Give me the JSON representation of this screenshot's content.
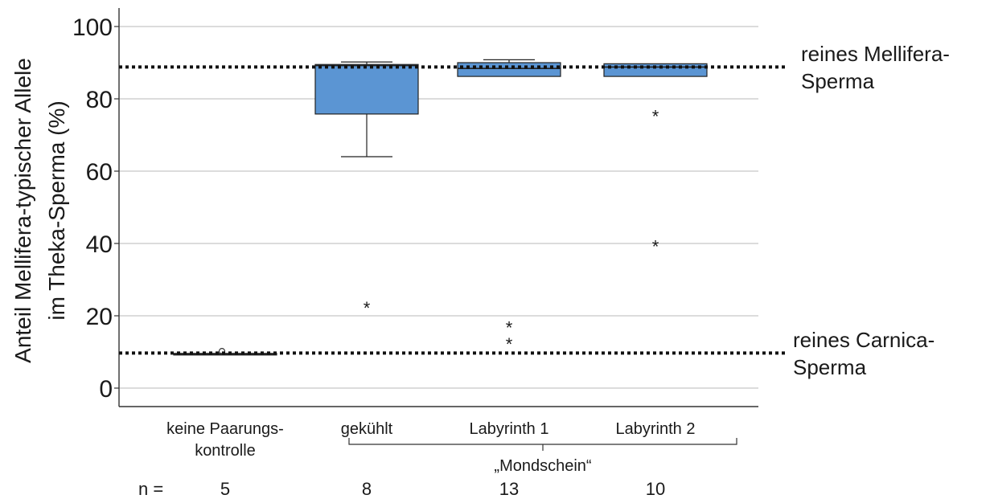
{
  "chart_data": {
    "type": "boxplot",
    "ylabel_line1": "Anteil Mellifera-typischer Allele",
    "ylabel_line2": "im Theka-Sperma (%)",
    "ylim": [
      -5,
      106
    ],
    "yticks": [
      0,
      20,
      40,
      60,
      80,
      100
    ],
    "grid": true,
    "categories": [
      {
        "line1": "keine Paarungs-",
        "line2": "kontrolle"
      },
      {
        "line1": "gekühlt",
        "line2": ""
      },
      {
        "line1": "Labyrinth 1",
        "line2": ""
      },
      {
        "line1": "Labyrinth 2",
        "line2": ""
      }
    ],
    "n_label": "n =",
    "n_values": [
      "5",
      "8",
      "13",
      "10"
    ],
    "group_label": "„Mondschein“",
    "boxes": [
      {
        "whisker_low": 9.2,
        "q1": 9.2,
        "median": 9.4,
        "q3": 9.6,
        "whisker_high": 9.6,
        "outliers_circle": [
          10.2
        ],
        "outliers_star": []
      },
      {
        "whisker_low": 64,
        "q1": 75.8,
        "median": 89.2,
        "q3": 89.5,
        "whisker_high": 90.2,
        "outliers_circle": [],
        "outliers_star": [
          22.5
        ]
      },
      {
        "whisker_low": 86.2,
        "q1": 86.2,
        "median": 88.4,
        "q3": 90.0,
        "whisker_high": 90.8,
        "outliers_circle": [],
        "outliers_star": [
          17,
          12.5
        ]
      },
      {
        "whisker_low": 86.2,
        "q1": 86.2,
        "median": 88.8,
        "q3": 89.7,
        "whisker_high": 89.7,
        "outliers_circle": [],
        "outliers_star": [
          75.5,
          39.5
        ]
      }
    ],
    "reference_lines": [
      {
        "value": 88.8,
        "label_line1": "reines Mellifera-",
        "label_line2": "Sperma"
      },
      {
        "value": 9.7,
        "label_line1": "reines Carnica-",
        "label_line2": "Sperma"
      }
    ],
    "box_color": "#5b95d3",
    "grid_color": "#c8c8c8",
    "axis_color": "#333333"
  }
}
